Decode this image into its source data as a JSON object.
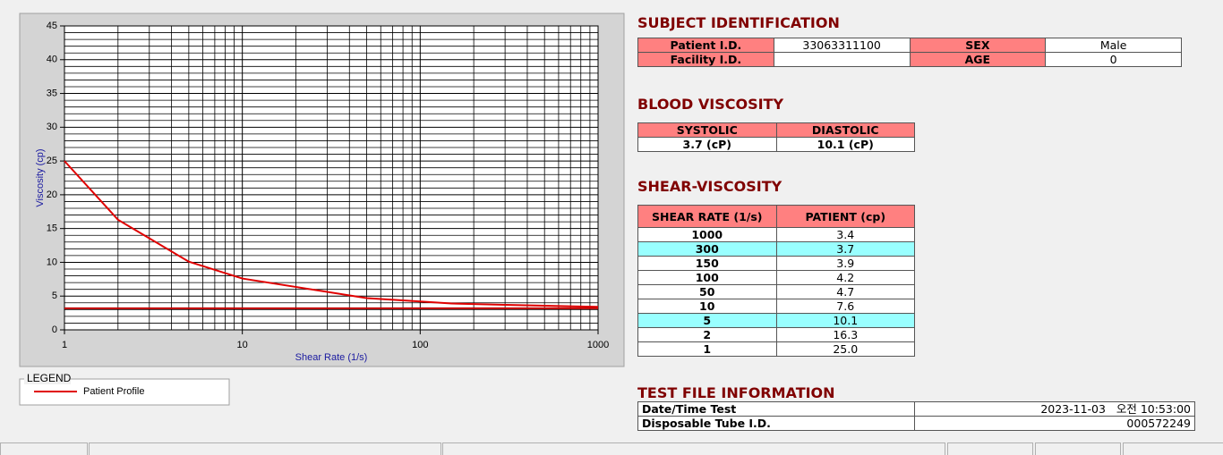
{
  "chart_data": {
    "type": "line",
    "x_label": "Shear Rate (1/s)",
    "y_label": "Viscosity (cp)",
    "xscale": "log",
    "xlim": [
      1,
      1000
    ],
    "xticks": [
      1,
      10,
      100,
      1000
    ],
    "ylim": [
      0,
      45
    ],
    "yticks": [
      0,
      5,
      10,
      15,
      20,
      25,
      30,
      35,
      40,
      45
    ],
    "grid": true,
    "minor_grid": true,
    "legend_title": "LEGEND",
    "series": [
      {
        "name": "Patient Profile",
        "color": "#e00000",
        "x": [
          1,
          2,
          5,
          10,
          50,
          100,
          150,
          300,
          1000
        ],
        "values": [
          25.0,
          16.3,
          10.1,
          7.6,
          4.7,
          4.2,
          3.9,
          3.7,
          3.4
        ]
      },
      {
        "color": "#c00000",
        "x": [
          1,
          1000
        ],
        "values": [
          3.2,
          3.2
        ]
      }
    ]
  },
  "subject_identification": {
    "title": "SUBJECT IDENTIFICATION",
    "rows": [
      [
        "Patient I.D.",
        "33063311100",
        "SEX",
        "Male"
      ],
      [
        "Facility I.D.",
        null,
        "AGE",
        "0"
      ]
    ]
  },
  "blood_viscosity": {
    "title": "BLOOD VISCOSITY",
    "headers": [
      "SYSTOLIC",
      "DIASTOLIC"
    ],
    "values": [
      "3.7 (cP)",
      "10.1 (cP)"
    ]
  },
  "shear_viscosity": {
    "title": "SHEAR-VISCOSITY",
    "headers": [
      "SHEAR RATE (1/s)",
      "PATIENT (cp)"
    ],
    "rows": [
      [
        "1000",
        "3.4"
      ],
      [
        "300",
        "3.7"
      ],
      [
        "150",
        "3.9"
      ],
      [
        "100",
        "4.2"
      ],
      [
        "50",
        "4.7"
      ],
      [
        "10",
        "7.6"
      ],
      [
        "5",
        "10.1"
      ],
      [
        "2",
        "16.3"
      ],
      [
        "1",
        "25.0"
      ]
    ],
    "highlighted_rows": [
      1,
      6
    ]
  },
  "test_file_information": {
    "title": "TEST FILE INFORMATION",
    "rows": [
      [
        "Date/Time Test",
        "2023-11-03   오전 10:53:00"
      ],
      [
        "Disposable Tube I.D.",
        "000572249"
      ]
    ]
  }
}
